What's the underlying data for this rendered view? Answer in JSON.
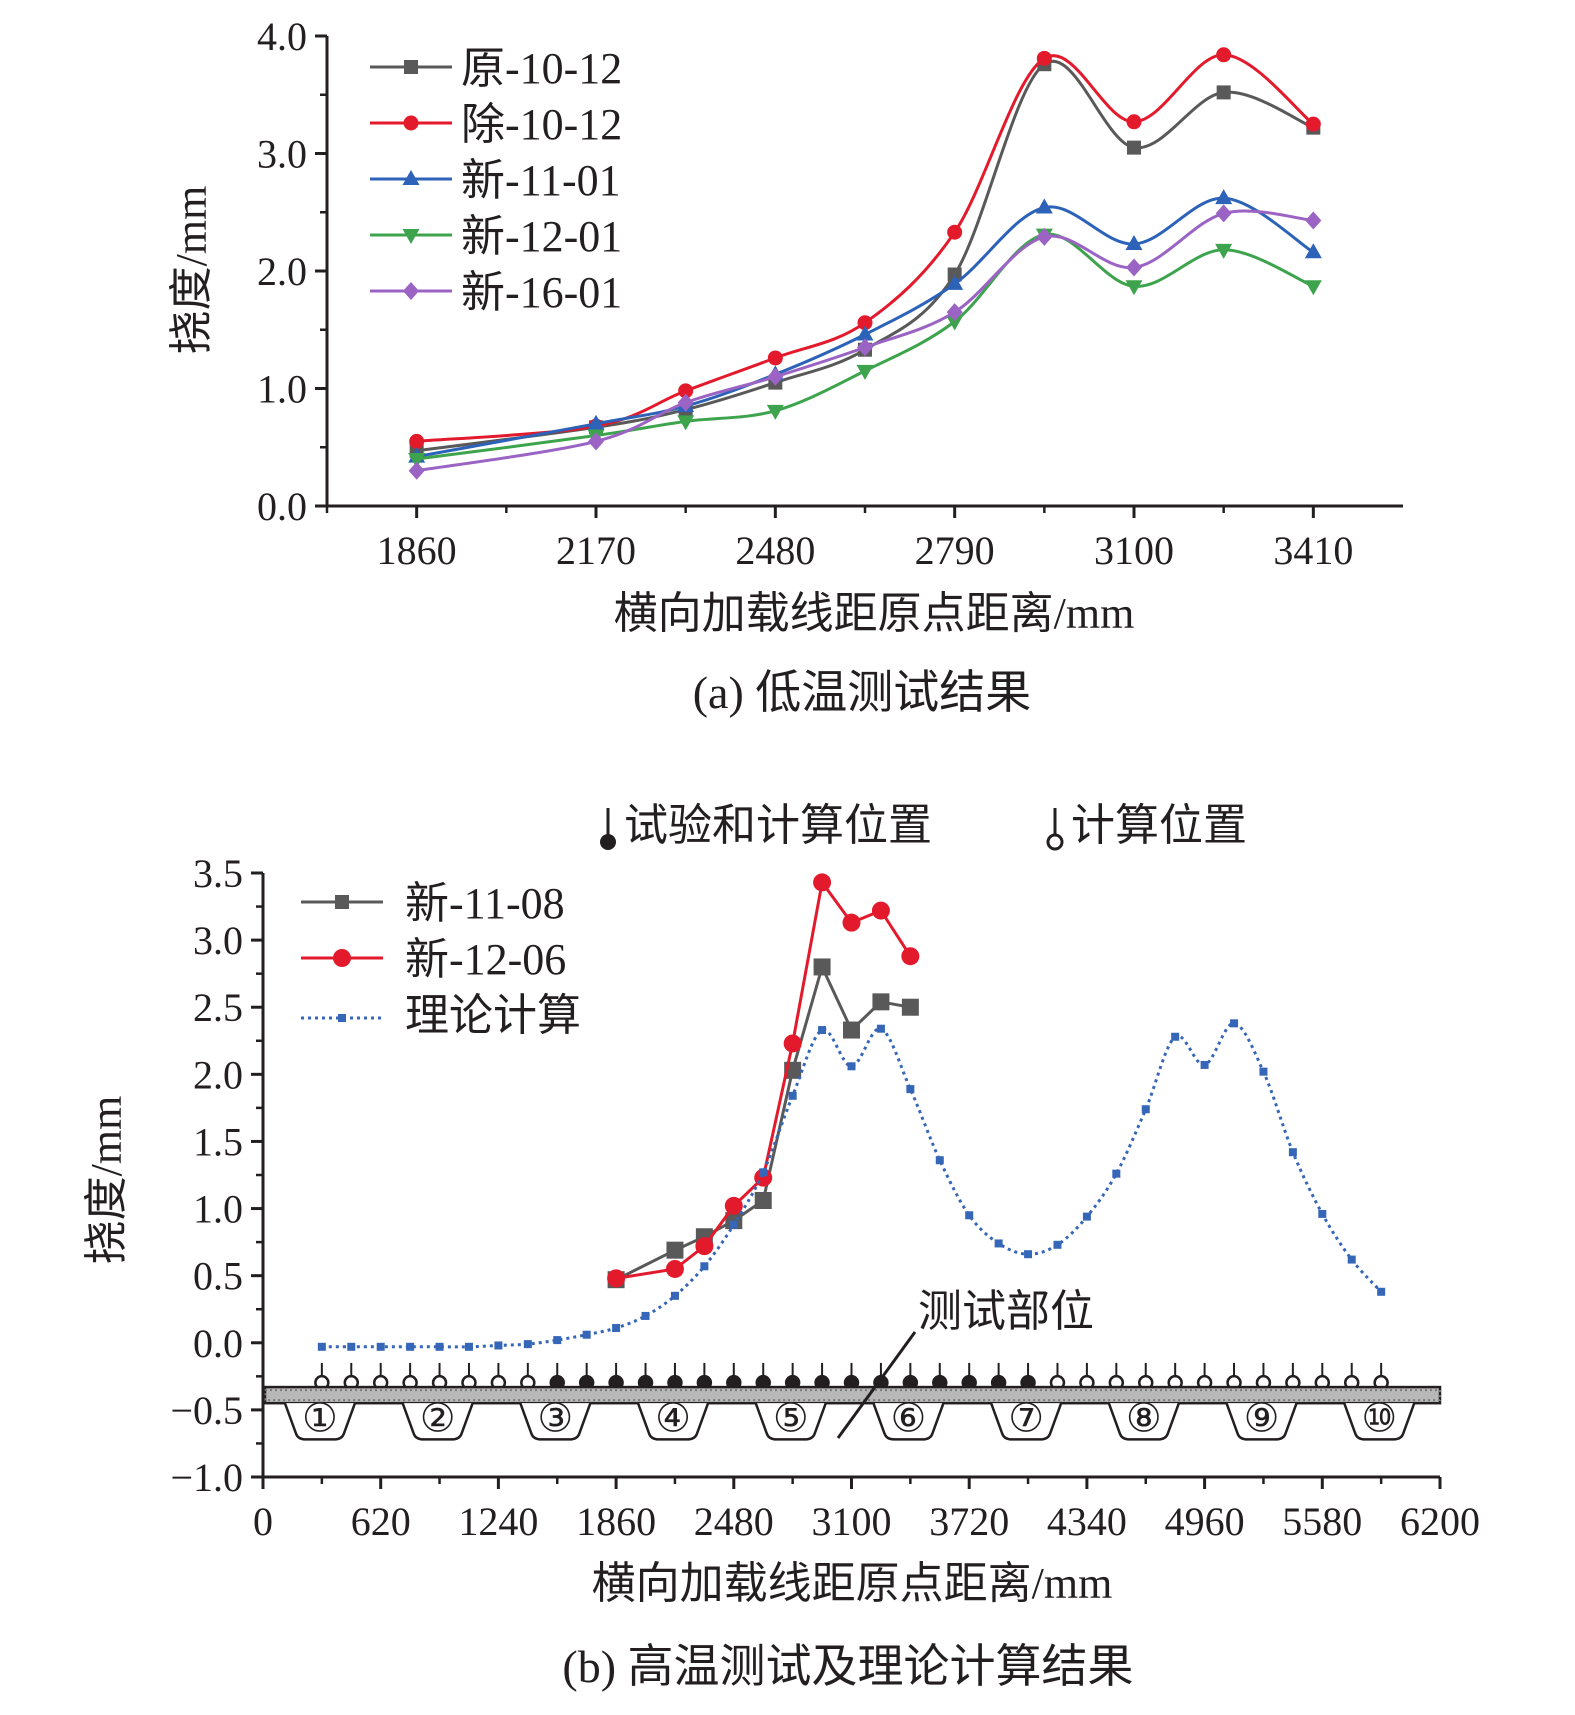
{
  "chart_data": [
    {
      "type": "line",
      "caption": "(a) 低温测试结果",
      "xlabel": "横向加载线距原点距离/mm",
      "ylabel": "挠度/mm",
      "xlim": [
        1705,
        3565
      ],
      "ylim": [
        0.0,
        4.0
      ],
      "xticks": [
        "1860",
        "2170",
        "2480",
        "2790",
        "3100",
        "3410"
      ],
      "yticks": [
        "0.0",
        "1.0",
        "2.0",
        "3.0",
        "4.0"
      ],
      "legend_position": "top-left",
      "x": [
        1860,
        2170,
        2325,
        2480,
        2635,
        2790,
        2945,
        3100,
        3255,
        3410
      ],
      "series": [
        {
          "name": "原-10-12",
          "color": "#595959",
          "marker": "square",
          "values": [
            0.47,
            0.67,
            0.82,
            1.05,
            1.33,
            1.97,
            3.76,
            3.05,
            3.52,
            3.22
          ]
        },
        {
          "name": "除-10-12",
          "color": "#e31a2c",
          "marker": "circle",
          "values": [
            0.55,
            0.68,
            0.98,
            1.26,
            1.56,
            2.33,
            3.81,
            3.27,
            3.84,
            3.25
          ]
        },
        {
          "name": "新-11-01",
          "color": "#2c63b8",
          "marker": "triangle-up",
          "values": [
            0.42,
            0.7,
            0.85,
            1.12,
            1.46,
            1.89,
            2.54,
            2.23,
            2.62,
            2.16
          ]
        },
        {
          "name": "新-12-01",
          "color": "#3da44d",
          "marker": "triangle-down",
          "values": [
            0.4,
            0.6,
            0.72,
            0.81,
            1.15,
            1.57,
            2.31,
            1.87,
            2.18,
            1.87
          ]
        },
        {
          "name": "新-16-01",
          "color": "#9a63c4",
          "marker": "diamond",
          "values": [
            0.3,
            0.55,
            0.88,
            1.1,
            1.35,
            1.65,
            2.29,
            2.03,
            2.49,
            2.43
          ]
        }
      ]
    },
    {
      "type": "line",
      "caption": "(b) 高温测试及理论计算结果",
      "xlabel": "横向加载线距原点距离/mm",
      "ylabel": "挠度/mm",
      "xlim": [
        0,
        6200
      ],
      "ylim": [
        -1.0,
        3.5
      ],
      "xticks": [
        "0",
        "620",
        "1240",
        "1860",
        "2480",
        "3100",
        "3720",
        "4340",
        "4960",
        "5580",
        "6200"
      ],
      "yticks": [
        "−1.0",
        "−0.5",
        "0.0",
        "0.5",
        "1.0",
        "1.5",
        "2.0",
        "2.5",
        "3.0",
        "3.5"
      ],
      "legend_position": "top-left",
      "top_legend": {
        "filled": "试验和计算位置",
        "open": "计算位置"
      },
      "annotation": "测试部位",
      "rib_labels": [
        "①",
        "②",
        "③",
        "④",
        "⑤",
        "⑥",
        "⑦",
        "⑧",
        "⑨",
        "⑩"
      ],
      "series": [
        {
          "name": "新-11-08",
          "color": "#595959",
          "marker": "square",
          "x": [
            1860,
            2170,
            2325,
            2480,
            2635,
            2790,
            2945,
            3100,
            3255,
            3410
          ],
          "values": [
            0.47,
            0.69,
            0.79,
            0.91,
            1.06,
            2.03,
            2.8,
            2.33,
            2.54,
            2.5
          ]
        },
        {
          "name": "新-12-06",
          "color": "#e31a2c",
          "marker": "circle",
          "x": [
            1860,
            2170,
            2325,
            2480,
            2635,
            2790,
            2945,
            3100,
            3255,
            3410
          ],
          "values": [
            0.48,
            0.55,
            0.72,
            1.02,
            1.23,
            2.23,
            3.43,
            3.13,
            3.22,
            2.88
          ]
        },
        {
          "name": "理论计算",
          "color": "#3566b8",
          "marker": "small-square",
          "dash": "dotted",
          "x": [
            310,
            465,
            620,
            775,
            930,
            1085,
            1240,
            1395,
            1550,
            1705,
            1860,
            2015,
            2170,
            2325,
            2480,
            2635,
            2790,
            2945,
            3100,
            3255,
            3410,
            3565,
            3720,
            3875,
            4030,
            4185,
            4340,
            4495,
            4650,
            4805,
            4960,
            5115,
            5270,
            5425,
            5580,
            5735,
            5890
          ],
          "values": [
            -0.03,
            -0.03,
            -0.03,
            -0.03,
            -0.03,
            -0.03,
            -0.02,
            -0.01,
            0.02,
            0.06,
            0.11,
            0.2,
            0.35,
            0.57,
            0.88,
            1.27,
            1.84,
            2.33,
            2.06,
            2.34,
            1.89,
            1.36,
            0.95,
            0.74,
            0.66,
            0.73,
            0.94,
            1.26,
            1.74,
            2.28,
            2.07,
            2.38,
            2.02,
            1.42,
            0.96,
            0.62,
            0.38
          ]
        }
      ]
    }
  ]
}
